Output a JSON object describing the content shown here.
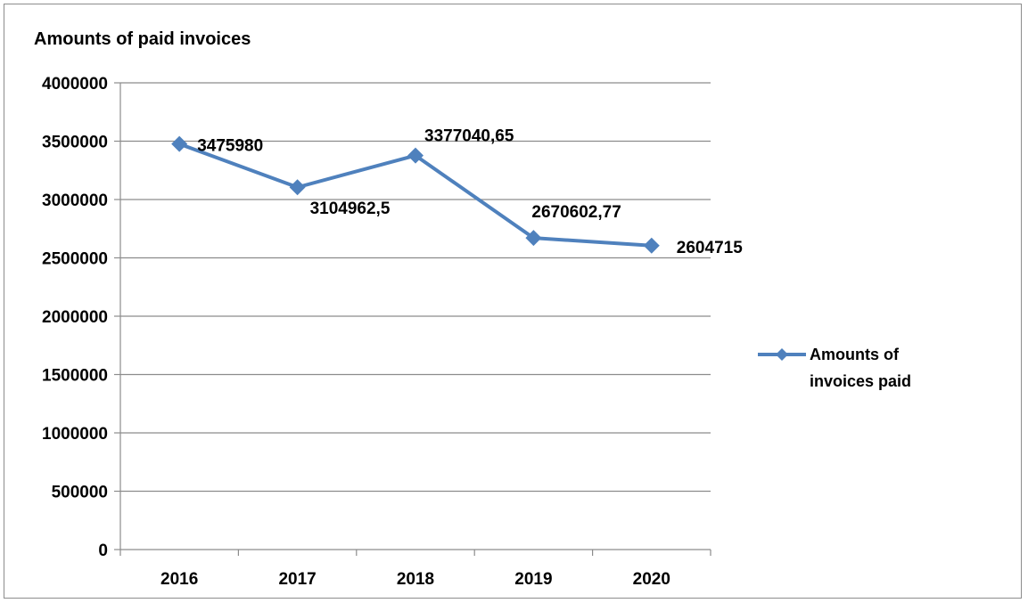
{
  "chart_data": {
    "type": "line",
    "title": "Amounts of paid invoices",
    "xlabel": "",
    "ylabel": "",
    "categories": [
      "2016",
      "2017",
      "2018",
      "2019",
      "2020"
    ],
    "y_ticks": [
      "0",
      "500000",
      "1000000",
      "1500000",
      "2000000",
      "2500000",
      "3000000",
      "3500000",
      "4000000"
    ],
    "ylim": [
      0,
      4000000
    ],
    "grid": true,
    "legend_position": "right",
    "series": [
      {
        "name": "Amounts of invoices paid",
        "legend_lines": [
          "Amounts of",
          "invoices paid"
        ],
        "color": "#4f81bd",
        "values": [
          3475980,
          3104962.5,
          3377040.65,
          2670602.77,
          2604715
        ],
        "data_labels": [
          "3475980",
          "3104962,5",
          "3377040,65",
          "2670602,77",
          "2604715"
        ]
      }
    ]
  }
}
